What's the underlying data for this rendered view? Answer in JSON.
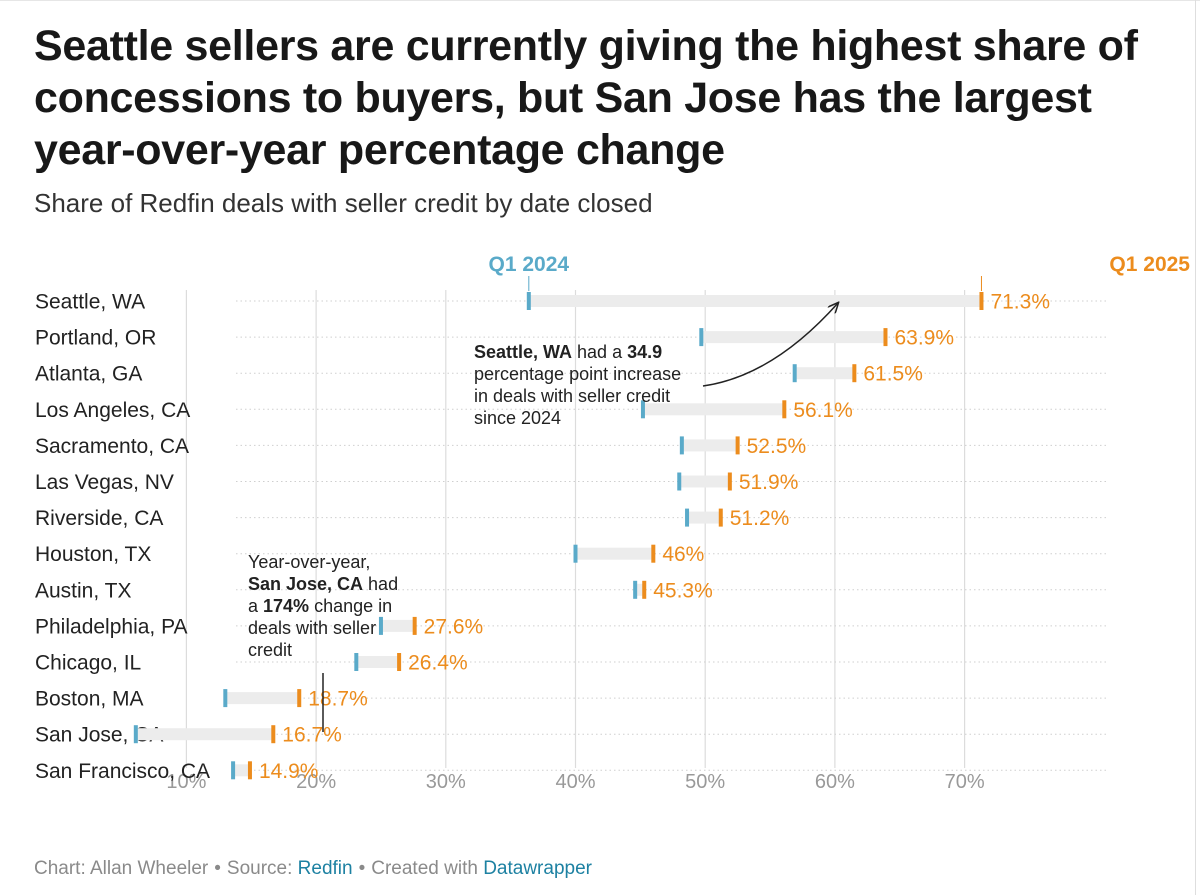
{
  "title": "Seattle sellers are currently giving the highest share of concessions to buyers, but San Jose has the largest year-over-year percentage change",
  "subtitle": "Share of Redfin deals with seller credit by date closed",
  "colors": {
    "q1_2024": "#5aaac9",
    "q1_2025": "#ec8c1d",
    "range": "#ececec",
    "grid": "#dcdcdc"
  },
  "chart_data": {
    "type": "range-plot",
    "title": "Seattle sellers are currently giving the highest share of concessions to buyers, but San Jose has the largest year-over-year percentage change",
    "subtitle": "Share of Redfin deals with seller credit by date closed",
    "series_names": [
      "Q1 2024",
      "Q1 2025"
    ],
    "xlim": [
      0,
      72
    ],
    "x_ticks": [
      10,
      20,
      30,
      40,
      50,
      60,
      70
    ],
    "x_tick_labels": [
      "10%",
      "20%",
      "30%",
      "40%",
      "50%",
      "60%",
      "70%"
    ],
    "rows": [
      {
        "city": "Seattle, WA",
        "q1_2024": 36.4,
        "q1_2025": 71.3,
        "label": "71.3%"
      },
      {
        "city": "Portland, OR",
        "q1_2024": 49.7,
        "q1_2025": 63.9,
        "label": "63.9%"
      },
      {
        "city": "Atlanta, GA",
        "q1_2024": 56.9,
        "q1_2025": 61.5,
        "label": "61.5%"
      },
      {
        "city": "Los Angeles, CA",
        "q1_2024": 45.2,
        "q1_2025": 56.1,
        "label": "56.1%"
      },
      {
        "city": "Sacramento, CA",
        "q1_2024": 48.2,
        "q1_2025": 52.5,
        "label": "52.5%"
      },
      {
        "city": "Las Vegas, NV",
        "q1_2024": 48.0,
        "q1_2025": 51.9,
        "label": "51.9%"
      },
      {
        "city": "Riverside, CA",
        "q1_2024": 48.6,
        "q1_2025": 51.2,
        "label": "51.2%"
      },
      {
        "city": "Houston, TX",
        "q1_2024": 40.0,
        "q1_2025": 46.0,
        "label": "46%"
      },
      {
        "city": "Austin, TX",
        "q1_2024": 44.6,
        "q1_2025": 45.3,
        "label": "45.3%"
      },
      {
        "city": "Philadelphia, PA",
        "q1_2024": 25.0,
        "q1_2025": 27.6,
        "label": "27.6%"
      },
      {
        "city": "Chicago, IL",
        "q1_2024": 23.1,
        "q1_2025": 26.4,
        "label": "26.4%"
      },
      {
        "city": "Boston, MA",
        "q1_2024": 13.0,
        "q1_2025": 18.7,
        "label": "18.7%"
      },
      {
        "city": "San Jose, CA",
        "q1_2024": 6.1,
        "q1_2025": 16.7,
        "label": "16.7%"
      },
      {
        "city": "San Francisco, CA",
        "q1_2024": 13.6,
        "q1_2025": 14.9,
        "label": "14.9%"
      }
    ],
    "annotations": [
      {
        "id": "seattle",
        "lines": [
          [
            {
              "text": "Seattle, WA",
              "bold": true
            },
            {
              "text": " had a ",
              "bold": false
            },
            {
              "text": "34.9",
              "bold": true
            }
          ],
          [
            {
              "text": "percentage point increase",
              "bold": false
            }
          ],
          [
            {
              "text": "in deals with seller credit",
              "bold": false
            }
          ],
          [
            {
              "text": "since 2024",
              "bold": false
            }
          ]
        ]
      },
      {
        "id": "sanjose",
        "lines": [
          [
            {
              "text": "Year-over-year,",
              "bold": false
            }
          ],
          [
            {
              "text": "San Jose, CA",
              "bold": true
            },
            {
              "text": " had",
              "bold": false
            }
          ],
          [
            {
              "text": "a ",
              "bold": false
            },
            {
              "text": "174%",
              "bold": true
            },
            {
              "text": " change in",
              "bold": false
            }
          ],
          [
            {
              "text": "deals with seller",
              "bold": false
            }
          ],
          [
            {
              "text": "credit",
              "bold": false
            }
          ]
        ]
      }
    ]
  },
  "footer": {
    "chart_prefix": "Chart: Allan Wheeler",
    "separator": "•",
    "source_prefix": "Source:",
    "source_link": "Redfin",
    "created_prefix": "Created with",
    "created_link": "Datawrapper"
  }
}
